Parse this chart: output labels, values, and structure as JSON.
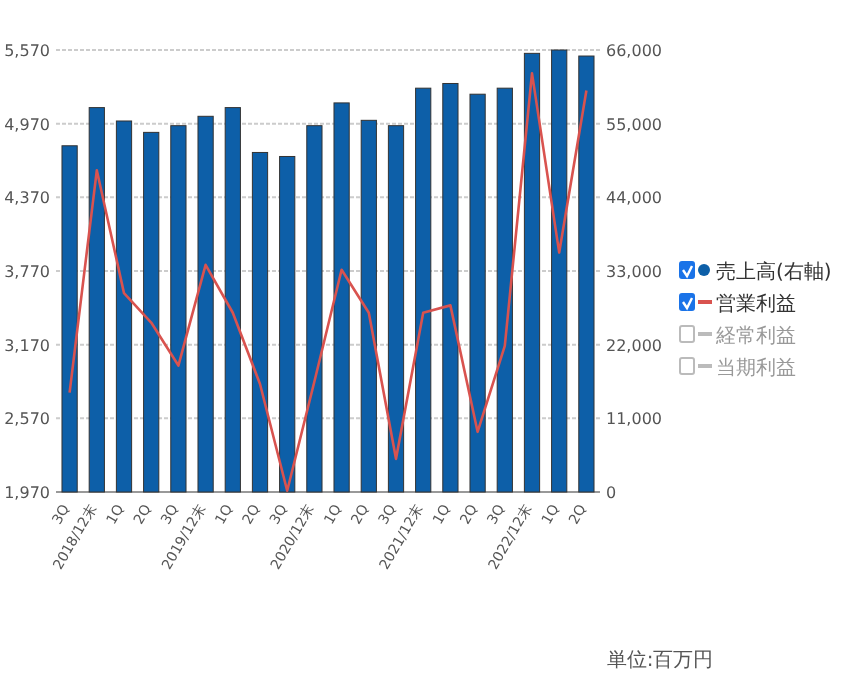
{
  "chart_data": {
    "type": "bar",
    "categories": [
      "3Q",
      "2018/12末",
      "1Q",
      "2Q",
      "3Q",
      "2019/12末",
      "1Q",
      "2Q",
      "3Q",
      "2020/12末",
      "1Q",
      "2Q",
      "3Q",
      "2021/12末",
      "1Q",
      "2Q",
      "3Q",
      "2022/12末",
      "1Q",
      "2Q"
    ],
    "series": [
      {
        "name": "売上高(右軸)",
        "axis": "y2",
        "color": "#0d5fa8",
        "values": [
          51700,
          57400,
          55400,
          53700,
          54700,
          56100,
          57400,
          50700,
          50100,
          54700,
          58100,
          55500,
          54700,
          60300,
          61000,
          59400,
          60300,
          65500,
          66000,
          65100
        ]
      },
      {
        "name": "営業利益",
        "type": "line",
        "color": "#d9534f",
        "values": [
          2780,
          4590,
          3590,
          3350,
          3000,
          3820,
          3430,
          2850,
          1980,
          2870,
          3780,
          3430,
          2240,
          3430,
          3490,
          2460,
          3160,
          5380,
          3920,
          5240
        ]
      },
      {
        "name": "経常利益",
        "type": "line",
        "color": "#bbbbbb",
        "values": [
          null,
          null,
          null,
          null,
          null,
          null,
          null,
          null,
          null,
          null,
          null,
          null,
          null,
          null,
          null,
          null,
          null,
          null,
          null,
          null
        ]
      },
      {
        "name": "当期利益",
        "type": "line",
        "color": "#bbbbbb",
        "values": [
          null,
          null,
          null,
          null,
          null,
          null,
          null,
          null,
          null,
          null,
          null,
          null,
          null,
          null,
          null,
          null,
          null,
          null,
          null,
          null
        ]
      }
    ],
    "ylim": [
      1970,
      5570
    ],
    "yticks": [
      {
        "value": 1970,
        "label": "1,970"
      },
      {
        "value": 2570,
        "label": "2,570"
      },
      {
        "value": 3170,
        "label": "3,170"
      },
      {
        "value": 3770,
        "label": "3,770"
      },
      {
        "value": 4370,
        "label": "4,370"
      },
      {
        "value": 4970,
        "label": "4,970"
      },
      {
        "value": 5570,
        "label": "5,570"
      }
    ],
    "y2lim": [
      0,
      66000
    ],
    "y2ticks": [
      0,
      {
        "value": 11000,
        "label": "11,000"
      },
      {
        "value": 22000,
        "label": "22,000"
      },
      {
        "value": 33000,
        "label": "33,000"
      },
      {
        "value": 44000,
        "label": "44,000"
      },
      {
        "value": 55000,
        "label": "55,000"
      },
      {
        "value": 66000,
        "label": "66,000"
      }
    ],
    "grid": "y",
    "legend": "right",
    "annotations": [
      "単位:百万円"
    ]
  }
}
